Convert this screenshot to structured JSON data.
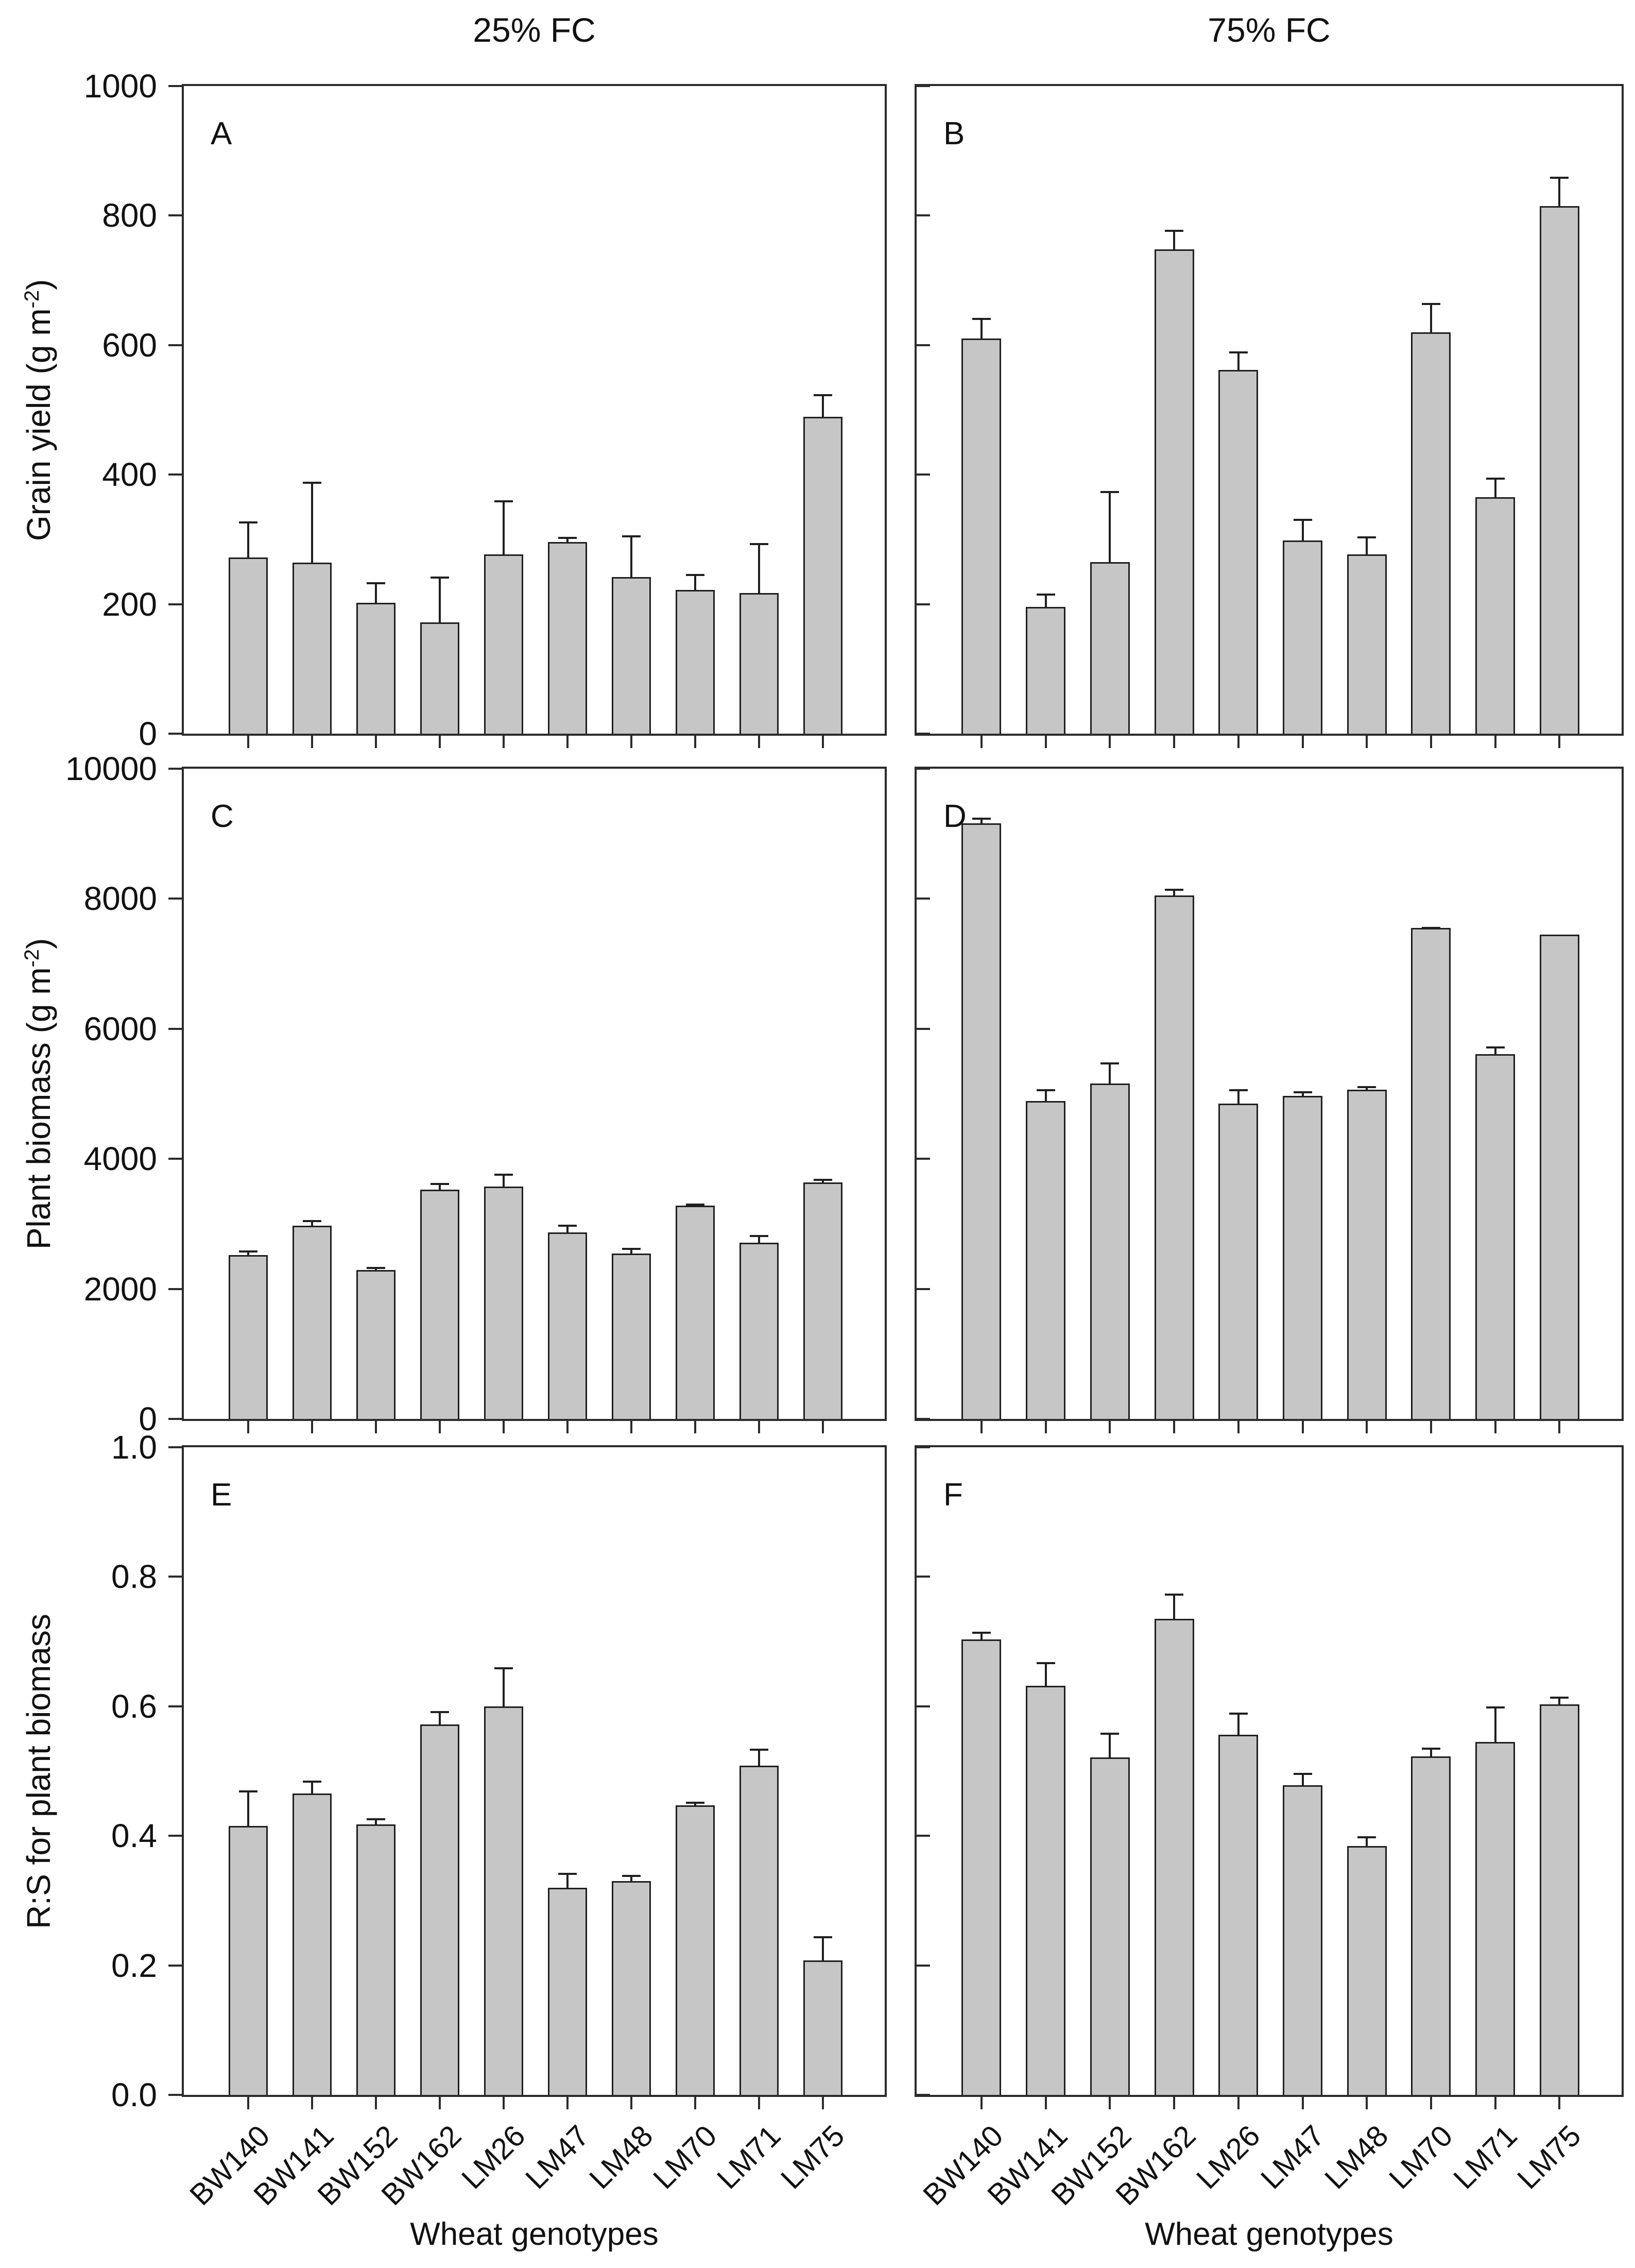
{
  "figure": {
    "bar_fill": "#c6c6c6",
    "bar_border": "#1f1f1f",
    "axis_color": "#2b2b2b",
    "text_color": "#111111"
  },
  "chart_data": {
    "type": "bar",
    "column_titles": [
      "25% FC",
      "75% FC"
    ],
    "x_axis_title": "Wheat genotypes",
    "categories": [
      "BW140",
      "BW141",
      "BW152",
      "BW162",
      "LM26",
      "LM47",
      "LM48",
      "LM70",
      "LM71",
      "LM75"
    ],
    "legend": "none",
    "grid": "off",
    "error_bars": "upper only, capped",
    "rows": [
      {
        "ylabel_main": "Grain yield (g m",
        "ylabel_sup": "-2",
        "ylabel_close": ")",
        "ymax": 1000,
        "yticks": [
          "0",
          "200",
          "400",
          "600",
          "800",
          "1000"
        ]
      },
      {
        "ylabel_main": "Plant biomass (g m",
        "ylabel_sup": "-2",
        "ylabel_close": ")",
        "ymax": 10000,
        "yticks": [
          "0",
          "2000",
          "4000",
          "6000",
          "8000",
          "10000"
        ]
      },
      {
        "ylabel_main": "R:S for plant biomass",
        "ylabel_sup": "",
        "ylabel_close": "",
        "ymax": 1.0,
        "yticks": [
          "0.0",
          "0.2",
          "0.4",
          "0.6",
          "0.8",
          "1.0"
        ]
      }
    ],
    "panels": [
      {
        "label": "A",
        "row": 0,
        "col": 0,
        "condition": "25% FC",
        "measure": "Grain yield (g m-2)",
        "values": [
          272,
          264,
          202,
          172,
          277,
          296,
          242,
          222,
          217,
          489
        ],
        "errors_upper": [
          328,
          389,
          234,
          243,
          360,
          304,
          306,
          247,
          294,
          524
        ]
      },
      {
        "label": "B",
        "row": 0,
        "col": 1,
        "condition": "75% FC",
        "measure": "Grain yield (g m-2)",
        "values": [
          610,
          196,
          265,
          748,
          562,
          298,
          277,
          620,
          365,
          815
        ],
        "errors_upper": [
          642,
          216,
          375,
          778,
          590,
          332,
          305,
          665,
          395,
          860
        ]
      },
      {
        "label": "C",
        "row": 1,
        "col": 0,
        "condition": "25% FC",
        "measure": "Plant biomass (g m-2)",
        "values": [
          2520,
          2970,
          2290,
          3530,
          3570,
          2870,
          2540,
          3280,
          2710,
          3640
        ],
        "errors_upper": [
          2590,
          3060,
          2340,
          3630,
          3770,
          2990,
          2630,
          3310,
          2830,
          3690
        ]
      },
      {
        "label": "D",
        "row": 1,
        "col": 1,
        "condition": "75% FC",
        "measure": "Plant biomass (g m-2)",
        "values": [
          9160,
          4890,
          5160,
          8050,
          4850,
          4970,
          5060,
          7550,
          5610,
          7450
        ],
        "errors_upper": [
          9250,
          5070,
          5480,
          8150,
          5070,
          5040,
          5120,
          7570,
          5730,
          7450
        ]
      },
      {
        "label": "E",
        "row": 2,
        "col": 0,
        "condition": "25% FC",
        "measure": "R:S for plant biomass",
        "values": [
          0.415,
          0.465,
          0.418,
          0.572,
          0.6,
          0.32,
          0.33,
          0.447,
          0.508,
          0.208
        ],
        "errors_upper": [
          0.47,
          0.485,
          0.427,
          0.593,
          0.66,
          0.343,
          0.34,
          0.453,
          0.535,
          0.245
        ]
      },
      {
        "label": "F",
        "row": 2,
        "col": 1,
        "condition": "75% FC",
        "measure": "R:S for plant biomass",
        "values": [
          0.703,
          0.632,
          0.521,
          0.735,
          0.556,
          0.478,
          0.384,
          0.523,
          0.545,
          0.603
        ],
        "errors_upper": [
          0.715,
          0.668,
          0.559,
          0.774,
          0.59,
          0.497,
          0.399,
          0.536,
          0.6,
          0.615
        ]
      }
    ]
  }
}
